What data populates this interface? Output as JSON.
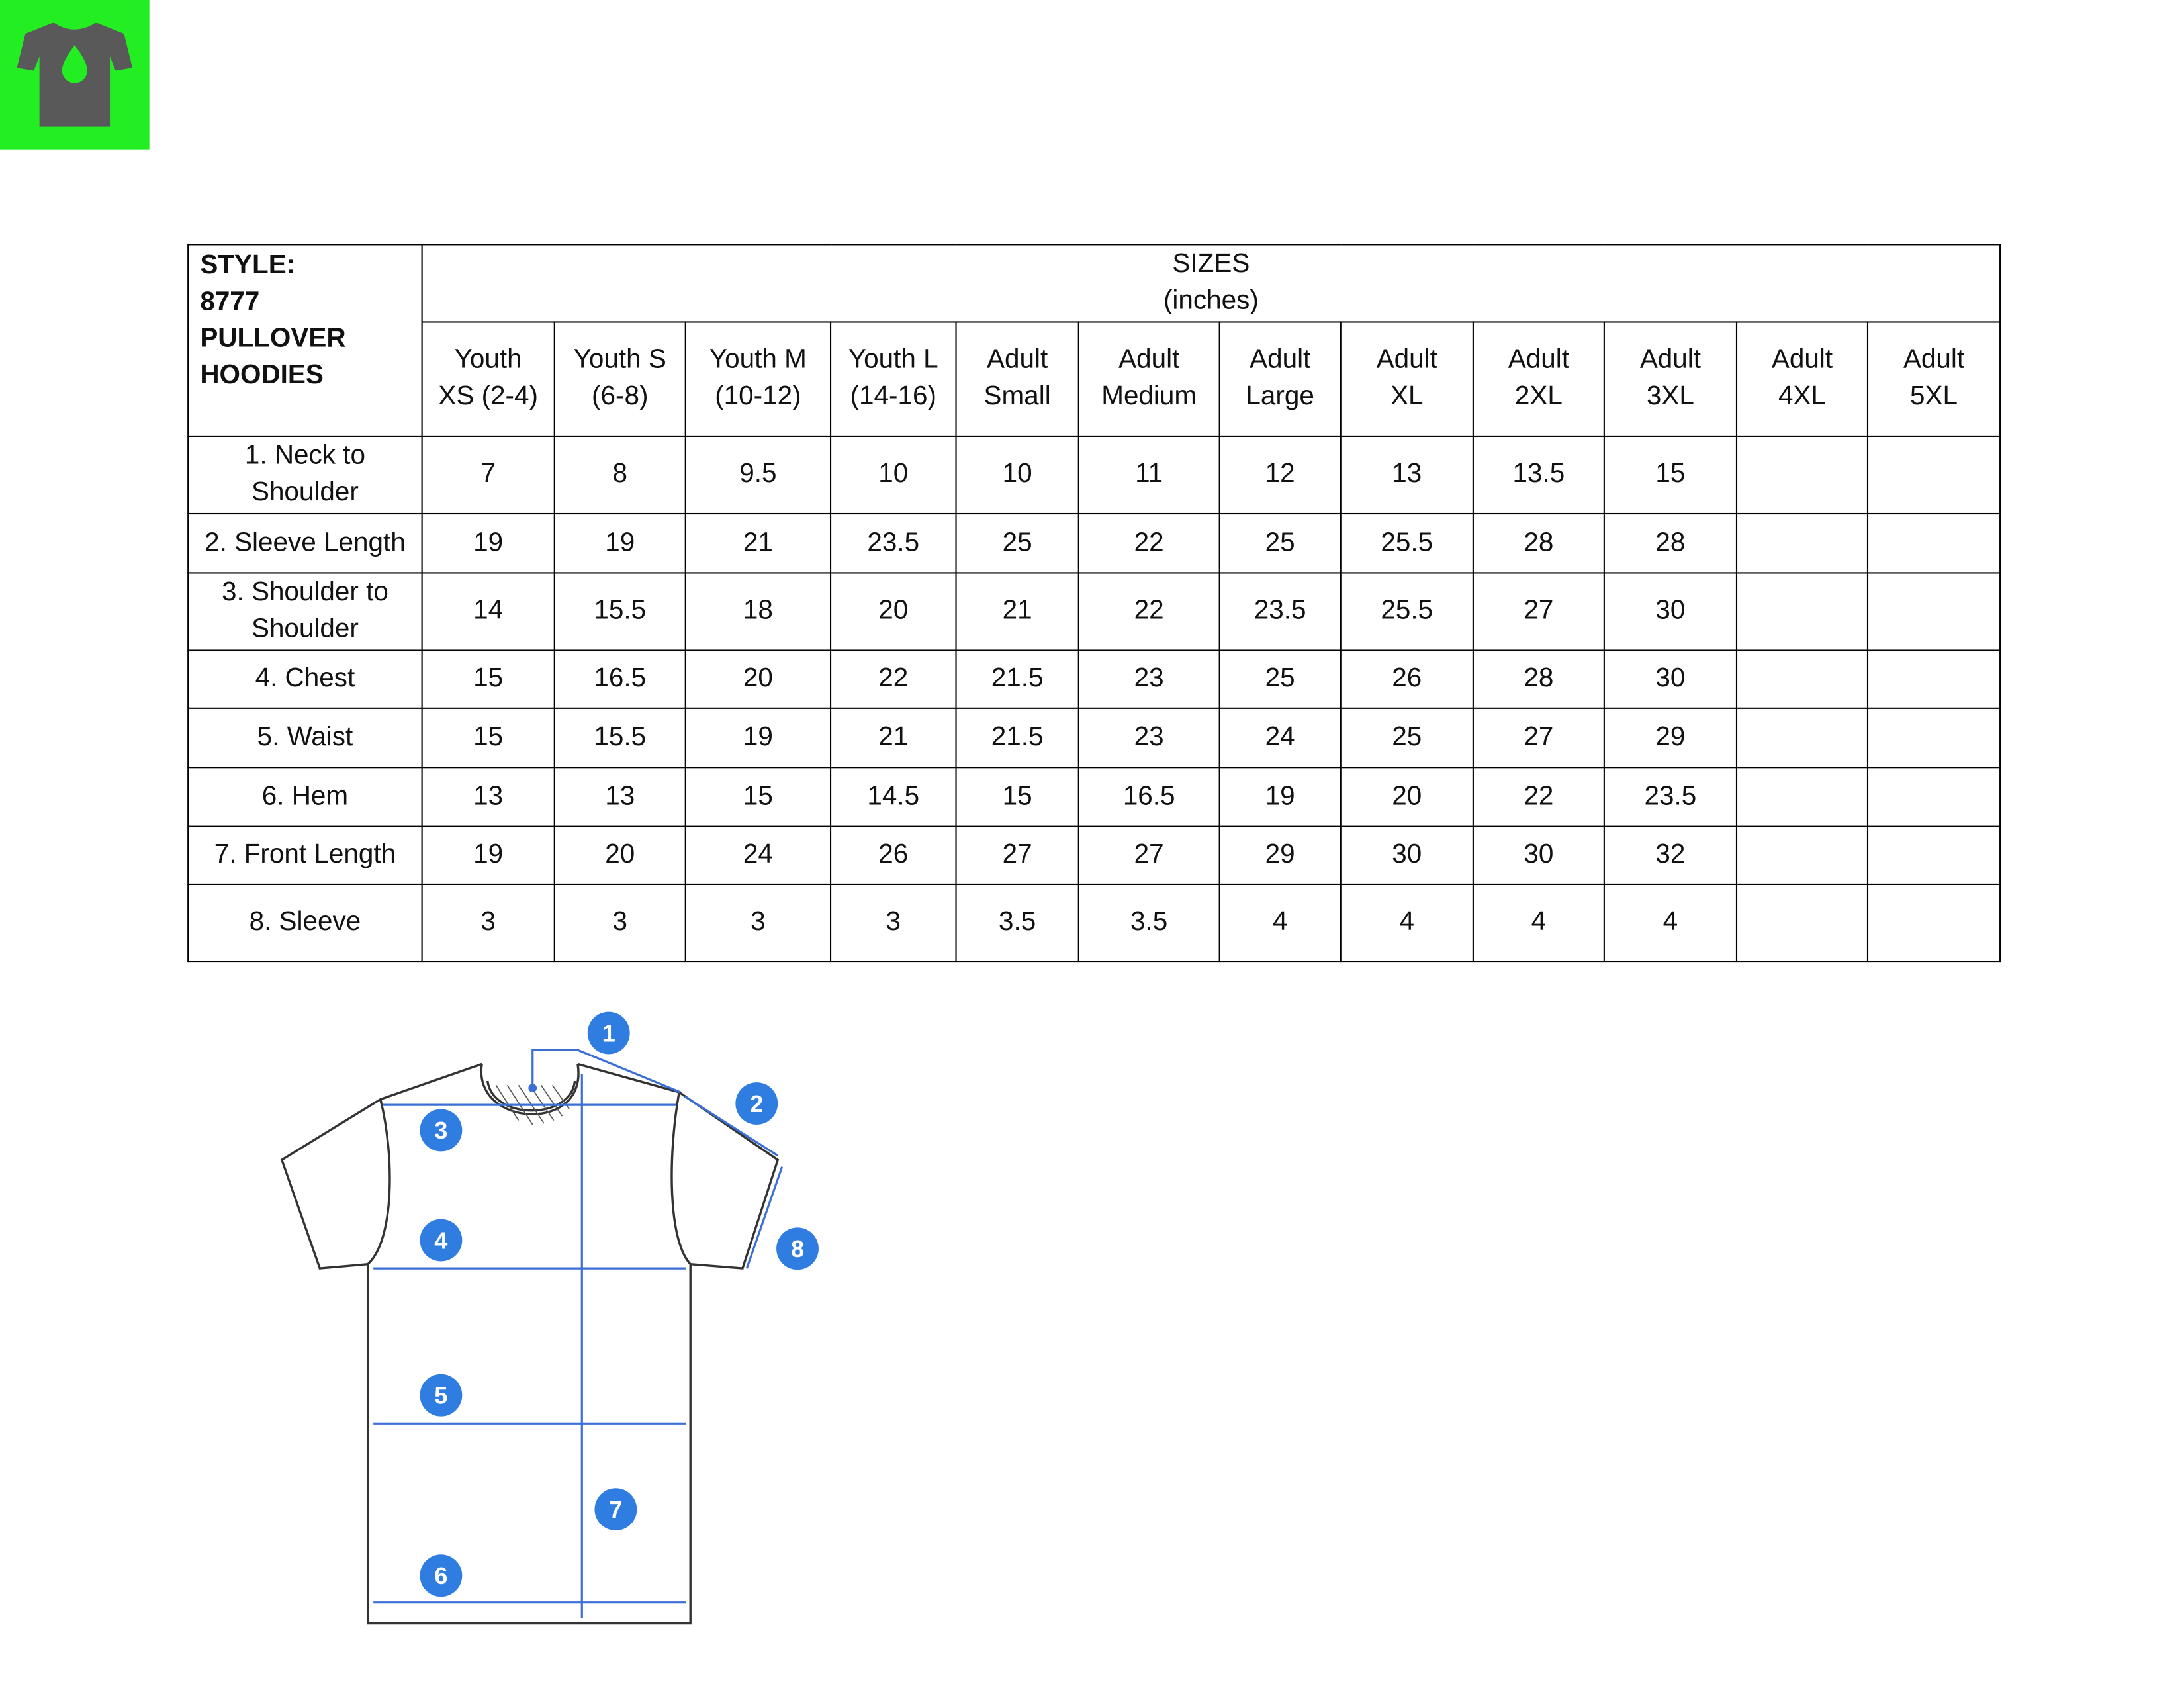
{
  "table": {
    "style_lines": [
      "STYLE:",
      "8777",
      "PULLOVER",
      "HOODIES"
    ],
    "sizes_title": [
      "SIZES",
      "(inches)"
    ],
    "columns": [
      [
        "Youth",
        "XS (2-4)"
      ],
      [
        "Youth S",
        "(6-8)"
      ],
      [
        "Youth M",
        "(10-12)"
      ],
      [
        "Youth L",
        "(14-16)"
      ],
      [
        "Adult",
        "Small"
      ],
      [
        "Adult",
        "Medium"
      ],
      [
        "Adult",
        "Large"
      ],
      [
        "Adult",
        "XL"
      ],
      [
        "Adult",
        "2XL"
      ],
      [
        "Adult",
        "3XL"
      ],
      [
        "Adult",
        "4XL"
      ],
      [
        "Adult",
        "5XL"
      ]
    ],
    "rows": [
      {
        "label": [
          "1. Neck to",
          "Shoulder"
        ],
        "values": [
          7,
          8,
          9.5,
          10,
          10,
          11,
          12,
          13,
          13.5,
          15,
          null,
          null
        ]
      },
      {
        "label": [
          "2. Sleeve Length"
        ],
        "values": [
          19,
          19,
          21,
          23.5,
          25,
          22,
          25,
          25.5,
          28,
          28,
          null,
          null
        ]
      },
      {
        "label": [
          "3. Shoulder to",
          "Shoulder"
        ],
        "values": [
          14,
          15.5,
          18,
          20,
          21,
          22,
          23.5,
          25.5,
          27,
          30,
          null,
          null
        ]
      },
      {
        "label": [
          "4. Chest"
        ],
        "values": [
          15,
          16.5,
          20,
          22,
          21.5,
          23,
          25,
          26,
          28,
          30,
          null,
          null
        ]
      },
      {
        "label": [
          "5. Waist"
        ],
        "values": [
          15,
          15.5,
          19,
          21,
          21.5,
          23,
          24,
          25,
          27,
          29,
          null,
          null
        ]
      },
      {
        "label": [
          "6. Hem"
        ],
        "values": [
          13,
          13,
          15,
          14.5,
          15,
          16.5,
          19,
          20,
          22,
          23.5,
          null,
          null
        ]
      },
      {
        "label": [
          "7. Front Length"
        ],
        "values": [
          19,
          20,
          24,
          26,
          27,
          27,
          29,
          30,
          30,
          32,
          null,
          null
        ]
      },
      {
        "label": [
          "8. Sleeve"
        ],
        "values": [
          3,
          3,
          3,
          3,
          3.5,
          3.5,
          4,
          4,
          4,
          4,
          null,
          null
        ]
      }
    ]
  },
  "diagram": {
    "markers": [
      "1",
      "2",
      "3",
      "4",
      "5",
      "6",
      "7",
      "8"
    ]
  }
}
